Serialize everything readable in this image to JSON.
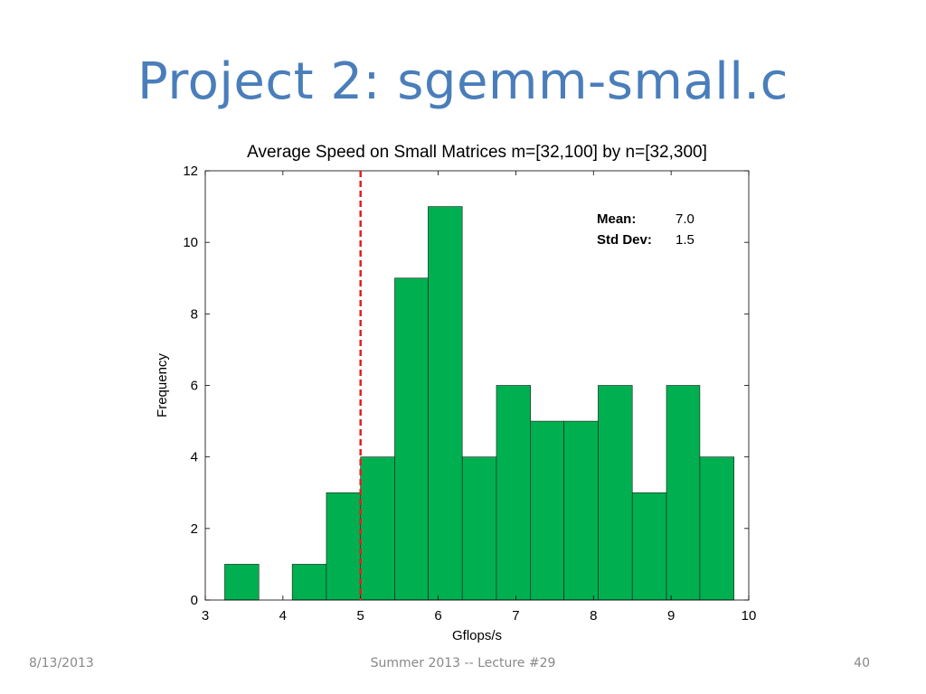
{
  "slide": {
    "title": "Project 2:  sgemm-small.c"
  },
  "footer": {
    "date": "8/13/2013",
    "center": "Summer 2013 -- Lecture #29",
    "page": "40"
  },
  "chart_data": {
    "type": "bar",
    "title": "Average Speed on Small Matrices m=[32,100] by n=[32,300]",
    "xlabel": "Gflops/s",
    "ylabel": "Frequency",
    "xlim": [
      3,
      10
    ],
    "ylim": [
      0,
      12
    ],
    "xticks": [
      3,
      4,
      5,
      6,
      7,
      8,
      9,
      10
    ],
    "yticks": [
      0,
      2,
      4,
      6,
      8,
      10,
      12
    ],
    "bins": [
      {
        "x0": 3.25,
        "x1": 3.69,
        "count": 1
      },
      {
        "x0": 3.69,
        "x1": 4.12,
        "count": 0
      },
      {
        "x0": 4.12,
        "x1": 4.56,
        "count": 1
      },
      {
        "x0": 4.56,
        "x1": 5.0,
        "count": 3
      },
      {
        "x0": 5.0,
        "x1": 5.44,
        "count": 4
      },
      {
        "x0": 5.44,
        "x1": 5.87,
        "count": 9
      },
      {
        "x0": 5.87,
        "x1": 6.31,
        "count": 11
      },
      {
        "x0": 6.31,
        "x1": 6.75,
        "count": 4
      },
      {
        "x0": 6.75,
        "x1": 7.19,
        "count": 6
      },
      {
        "x0": 7.19,
        "x1": 7.62,
        "count": 5
      },
      {
        "x0": 7.62,
        "x1": 8.06,
        "count": 5
      },
      {
        "x0": 8.06,
        "x1": 8.5,
        "count": 6
      },
      {
        "x0": 8.5,
        "x1": 8.94,
        "count": 3
      },
      {
        "x0": 8.94,
        "x1": 9.37,
        "count": 6
      },
      {
        "x0": 9.37,
        "x1": 9.81,
        "count": 4
      }
    ],
    "bar_color": "#00b050",
    "reference_line": {
      "x": 5,
      "color": "#e02020",
      "style": "dashed"
    },
    "stats": [
      {
        "label": "Mean:",
        "value": "7.0"
      },
      {
        "label": "Std Dev:",
        "value": "1.5"
      }
    ],
    "grid": false
  }
}
